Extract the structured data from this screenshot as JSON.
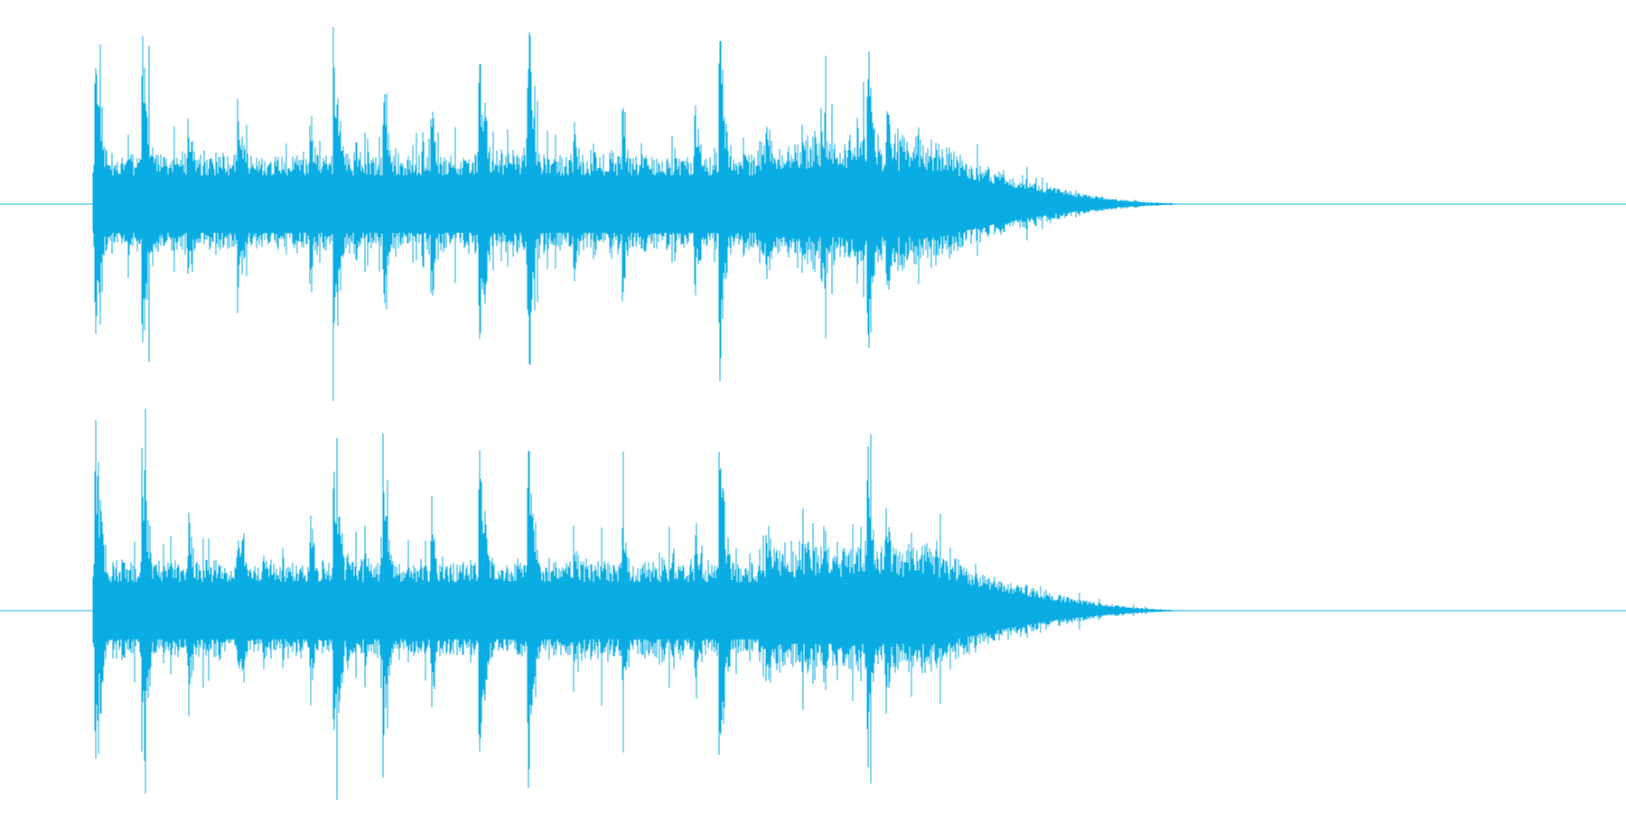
{
  "waveform": {
    "channels": [
      {
        "name": ""
      },
      {
        "name": ""
      }
    ],
    "color": "#09ace3",
    "baseline_color": "#09ace3",
    "background_color": "#ffffff"
  }
}
